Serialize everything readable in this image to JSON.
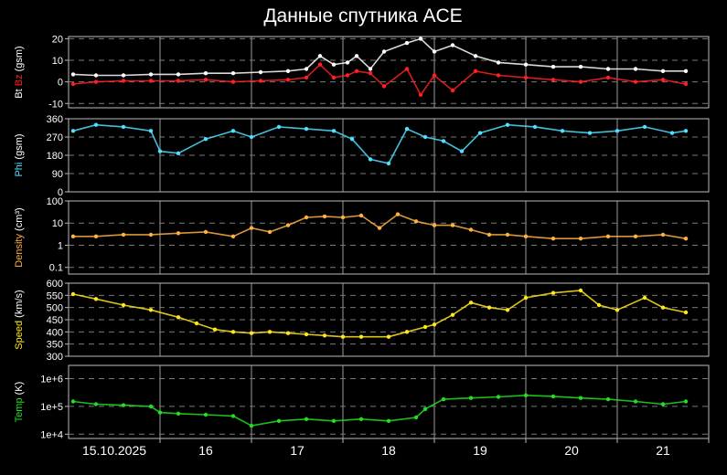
{
  "title": "Данные спутника ACE",
  "chart_data": [
    {
      "type": "scatter",
      "ylabel_parts": [
        {
          "text": "Bt ",
          "color": "#ffffff"
        },
        {
          "text": "Bz",
          "color": "#ff2020"
        },
        {
          "text": " (gsm)",
          "color": "#ffffff"
        }
      ],
      "ylim": [
        -12,
        21
      ],
      "yticks": [
        -10,
        0,
        10,
        20
      ],
      "tick_labels": [
        "-10",
        "0",
        "10",
        "20"
      ],
      "series": [
        {
          "color": "#ffffff",
          "x": [
            0.05,
            0.3,
            0.6,
            0.9,
            1.2,
            1.5,
            1.8,
            2.1,
            2.4,
            2.6,
            2.75,
            2.9,
            3.05,
            3.15,
            3.3,
            3.45,
            3.7,
            3.85,
            4.0,
            4.2,
            4.45,
            4.7,
            5.0,
            5.3,
            5.6,
            5.9,
            6.2,
            6.5,
            6.75
          ],
          "y": [
            3.5,
            3,
            3,
            3.5,
            3.5,
            4,
            4,
            4.5,
            5,
            6,
            12,
            8,
            9,
            12,
            6,
            14,
            18,
            20,
            14,
            17,
            12,
            9,
            8,
            7,
            7,
            6,
            6,
            5,
            5
          ]
        },
        {
          "color": "#ff2020",
          "x": [
            0.05,
            0.3,
            0.6,
            0.9,
            1.2,
            1.5,
            1.8,
            2.1,
            2.4,
            2.6,
            2.75,
            2.9,
            3.05,
            3.15,
            3.3,
            3.45,
            3.7,
            3.85,
            4.0,
            4.2,
            4.45,
            4.7,
            5.0,
            5.3,
            5.6,
            5.9,
            6.2,
            6.5,
            6.75
          ],
          "y": [
            -1,
            0,
            0.5,
            0.5,
            0.5,
            1,
            0,
            0.5,
            1,
            2,
            8,
            2,
            3,
            5,
            4,
            -2,
            6,
            -6,
            3,
            -4,
            5,
            3,
            2,
            1,
            0,
            2,
            0,
            1,
            -1
          ]
        }
      ]
    },
    {
      "type": "scatter",
      "ylabel_parts": [
        {
          "text": "Phi",
          "color": "#4fe0ff"
        },
        {
          "text": " (gsm)",
          "color": "#ffffff"
        }
      ],
      "ylim": [
        0,
        360
      ],
      "yticks": [
        0,
        90,
        180,
        270,
        360
      ],
      "tick_labels": [
        "0",
        "90",
        "180",
        "270",
        "360"
      ],
      "series": [
        {
          "color": "#4fe0ff",
          "x": [
            0.05,
            0.3,
            0.6,
            0.9,
            1.0,
            1.2,
            1.5,
            1.8,
            2.0,
            2.3,
            2.6,
            2.9,
            3.1,
            3.3,
            3.5,
            3.7,
            3.9,
            4.1,
            4.3,
            4.5,
            4.8,
            5.1,
            5.4,
            5.7,
            6.0,
            6.3,
            6.6,
            6.75
          ],
          "y": [
            300,
            330,
            320,
            300,
            200,
            190,
            260,
            300,
            270,
            320,
            310,
            300,
            260,
            160,
            140,
            310,
            270,
            250,
            200,
            290,
            330,
            320,
            300,
            290,
            300,
            320,
            290,
            300
          ]
        }
      ]
    },
    {
      "type": "scatter",
      "log": true,
      "ylabel_parts": [
        {
          "text": "Density",
          "color": "#ffb040"
        },
        {
          "text": " (cm³)",
          "color": "#ffffff"
        }
      ],
      "ylim": [
        0.05,
        100
      ],
      "yticks": [
        0.1,
        1,
        10,
        100
      ],
      "tick_labels": [
        "0.1",
        "1",
        "10",
        "100"
      ],
      "series": [
        {
          "color": "#ffb040",
          "x": [
            0.05,
            0.3,
            0.6,
            0.9,
            1.2,
            1.5,
            1.8,
            2.0,
            2.2,
            2.4,
            2.6,
            2.8,
            3.0,
            3.2,
            3.4,
            3.6,
            3.8,
            4.0,
            4.2,
            4.4,
            4.6,
            4.8,
            5.0,
            5.3,
            5.6,
            5.9,
            6.2,
            6.5,
            6.75
          ],
          "y": [
            2.5,
            2.5,
            3,
            3,
            3.5,
            4,
            2.5,
            6,
            4,
            8,
            18,
            20,
            18,
            22,
            6,
            25,
            12,
            8,
            8,
            5,
            3,
            3,
            2.5,
            2,
            2,
            2.5,
            2.5,
            3,
            2
          ]
        }
      ]
    },
    {
      "type": "scatter",
      "ylabel_parts": [
        {
          "text": "Speed",
          "color": "#ffe81a"
        },
        {
          "text": " (km/s)",
          "color": "#ffffff"
        }
      ],
      "ylim": [
        300,
        600
      ],
      "yticks": [
        300,
        350,
        400,
        450,
        500,
        550,
        600
      ],
      "tick_labels": [
        "300",
        "350",
        "400",
        "450",
        "500",
        "550",
        "600"
      ],
      "series": [
        {
          "color": "#ffe81a",
          "x": [
            0.05,
            0.3,
            0.6,
            0.9,
            1.2,
            1.4,
            1.6,
            1.8,
            2.0,
            2.2,
            2.4,
            2.6,
            2.8,
            3.0,
            3.2,
            3.5,
            3.7,
            3.9,
            4.0,
            4.2,
            4.4,
            4.6,
            4.8,
            5.0,
            5.3,
            5.6,
            5.8,
            6.0,
            6.3,
            6.5,
            6.75
          ],
          "y": [
            555,
            535,
            510,
            490,
            460,
            435,
            410,
            400,
            395,
            400,
            395,
            390,
            385,
            380,
            380,
            380,
            400,
            420,
            430,
            470,
            520,
            500,
            490,
            540,
            560,
            570,
            510,
            490,
            540,
            500,
            480
          ]
        }
      ]
    },
    {
      "type": "scatter",
      "log": true,
      "ylabel_parts": [
        {
          "text": "Temp",
          "color": "#20e020"
        },
        {
          "text": " (K)",
          "color": "#ffffff"
        }
      ],
      "ylim": [
        7000,
        3000000
      ],
      "yticks": [
        10000,
        100000,
        1000000
      ],
      "tick_labels": [
        "1e+4",
        "1e+5",
        "1e+6"
      ],
      "series": [
        {
          "color": "#20e020",
          "x": [
            0.05,
            0.3,
            0.6,
            0.9,
            1.0,
            1.2,
            1.5,
            1.8,
            2.0,
            2.3,
            2.6,
            2.9,
            3.2,
            3.5,
            3.8,
            3.9,
            4.1,
            4.4,
            4.7,
            5.0,
            5.3,
            5.6,
            5.9,
            6.2,
            6.5,
            6.75
          ],
          "y": [
            150000,
            120000,
            110000,
            100000,
            60000,
            55000,
            50000,
            45000,
            20000,
            30000,
            35000,
            30000,
            35000,
            30000,
            40000,
            80000,
            180000,
            200000,
            220000,
            250000,
            230000,
            200000,
            180000,
            150000,
            120000,
            150000
          ]
        }
      ]
    }
  ],
  "x_axis": {
    "xlim": [
      0,
      7
    ],
    "tick_labels": [
      "15.10.2025",
      "16",
      "17",
      "18",
      "19",
      "20",
      "21"
    ]
  }
}
